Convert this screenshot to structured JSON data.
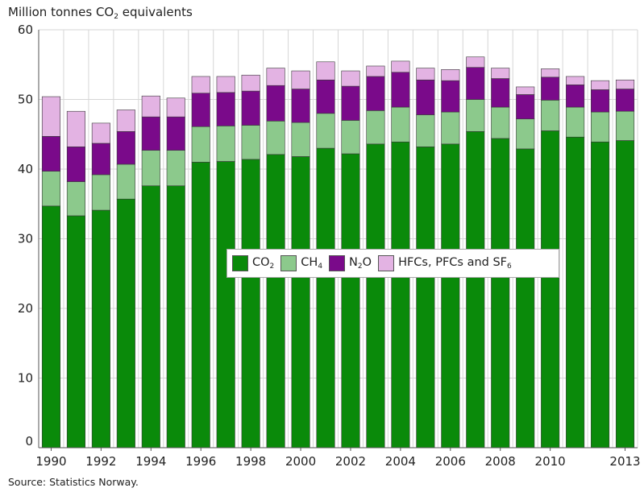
{
  "chart_data": {
    "type": "bar",
    "stacked": true,
    "ylabel": "Million tonnes CO",
    "ylabel_sub": "2",
    "ylabel_rest": " equivalents",
    "ylim": [
      0,
      60
    ],
    "yticks": [
      0,
      10,
      20,
      30,
      40,
      50,
      60
    ],
    "grid": true,
    "legend_position": "center",
    "categories": [
      "1990",
      "1991",
      "1992",
      "1993",
      "1994",
      "1995",
      "1996",
      "1997",
      "1998",
      "1999",
      "2000",
      "2001",
      "2002",
      "2003",
      "2004",
      "2005",
      "2006",
      "2007",
      "2008",
      "2009",
      "2010",
      "2011",
      "2012",
      "2013"
    ],
    "xtick_labels": [
      "1990",
      "",
      "1992",
      "",
      "1994",
      "",
      "1996",
      "",
      "1998",
      "",
      "2000",
      "",
      "2002",
      "",
      "2004",
      "",
      "2006",
      "",
      "2008",
      "",
      "2010",
      "",
      "",
      "2013"
    ],
    "series": [
      {
        "name": "CO2",
        "label_main": "CO",
        "label_sub": "2",
        "color": "#0a8a0a",
        "values": [
          34.7,
          33.3,
          34.1,
          35.7,
          37.6,
          37.6,
          41.0,
          41.1,
          41.4,
          42.1,
          41.8,
          43.0,
          42.2,
          43.6,
          43.9,
          43.2,
          43.6,
          45.4,
          44.4,
          42.9,
          45.5,
          44.6,
          43.9,
          44.1
        ]
      },
      {
        "name": "CH4",
        "label_main": "CH",
        "label_sub": "4",
        "color": "#8cc98c",
        "values": [
          5.0,
          4.9,
          5.1,
          5.0,
          5.1,
          5.1,
          5.1,
          5.1,
          4.9,
          4.8,
          4.9,
          5.0,
          4.8,
          4.8,
          5.0,
          4.6,
          4.6,
          4.6,
          4.5,
          4.3,
          4.4,
          4.3,
          4.3,
          4.2
        ]
      },
      {
        "name": "N2O",
        "label_main": "N",
        "label_sub": "2",
        "label_rest": "O",
        "color": "#7a0a8a",
        "values": [
          5.0,
          5.0,
          4.5,
          4.7,
          4.8,
          4.8,
          4.8,
          4.8,
          4.9,
          5.1,
          4.8,
          4.8,
          4.9,
          4.9,
          5.0,
          5.0,
          4.5,
          4.6,
          4.1,
          3.5,
          3.3,
          3.2,
          3.2,
          3.2
        ]
      },
      {
        "name": "HFCs, PFCs and SF6",
        "label_main": "HFCs, PFCs and SF",
        "label_sub": "6",
        "color": "#e3b3e3",
        "values": [
          5.7,
          5.1,
          2.9,
          3.1,
          3.0,
          2.7,
          2.4,
          2.3,
          2.3,
          2.5,
          2.6,
          2.6,
          2.2,
          1.5,
          1.6,
          1.7,
          1.6,
          1.5,
          1.5,
          1.1,
          1.2,
          1.2,
          1.3,
          1.3
        ]
      }
    ]
  },
  "source": "Source: Statistics Norway."
}
